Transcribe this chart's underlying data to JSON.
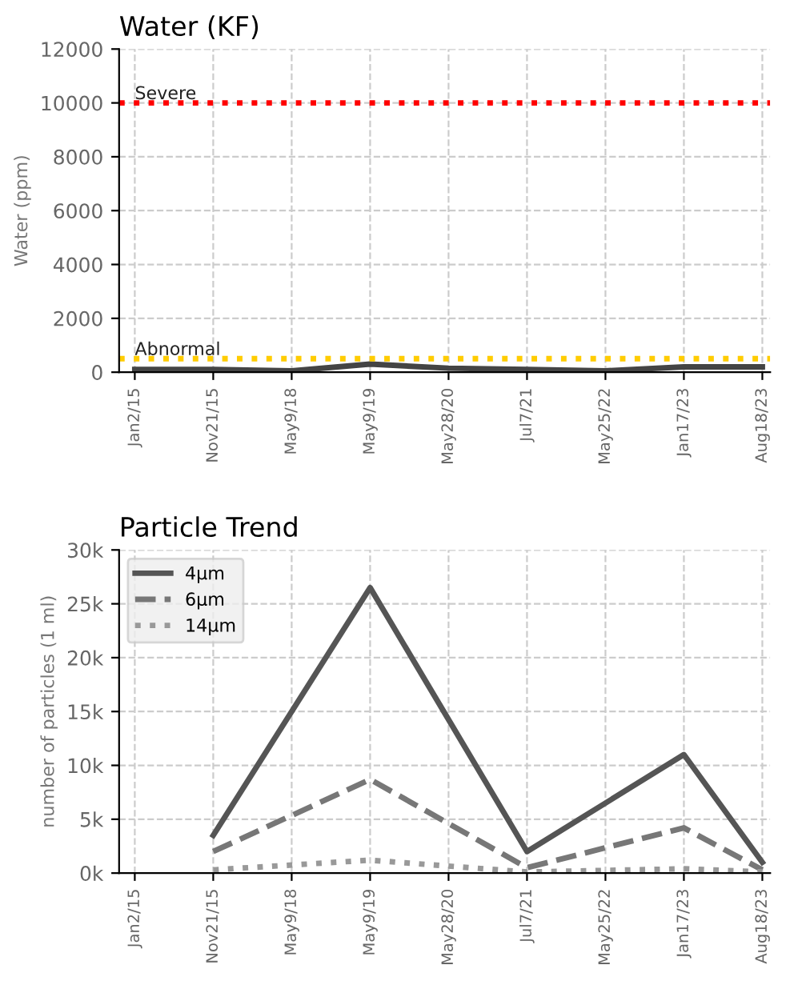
{
  "chart_data": [
    {
      "type": "line",
      "title": "Water (KF)",
      "ylabel": "Water (ppm)",
      "categories": [
        "Jan2/15",
        "Nov21/15",
        "May9/18",
        "May9/19",
        "May28/20",
        "Jul7/21",
        "May25/22",
        "Jan17/23",
        "Aug18/23"
      ],
      "series": [
        {
          "color": "#444444",
          "values": [
            100,
            100,
            50,
            300,
            150,
            100,
            50,
            200,
            200
          ]
        }
      ],
      "ylim": [
        0,
        12000
      ],
      "yticks": [
        0,
        2000,
        4000,
        6000,
        8000,
        10000,
        12000
      ],
      "grid": true,
      "line_style": "solid",
      "ref_lines": [
        {
          "axis": "y",
          "value": 10000,
          "label": "Severe",
          "color": "#ff0000",
          "line_style": "dotted"
        },
        {
          "axis": "y",
          "value": 500,
          "label": "Abnormal",
          "color": "#ffcc00",
          "line_style": "dotted"
        }
      ]
    },
    {
      "type": "line",
      "title": "Particle Trend",
      "ylabel": "number of particles (1 ml)",
      "categories": [
        "Jan2/15",
        "Nov21/15",
        "May9/18",
        "May9/19",
        "May28/20",
        "Jul7/21",
        "May25/22",
        "Jan17/23",
        "Aug18/23"
      ],
      "series": [
        {
          "name": "4µm",
          "color": "#555555",
          "line_style": "solid",
          "values": [
            null,
            3500,
            null,
            26500,
            null,
            2000,
            null,
            11000,
            1000
          ]
        },
        {
          "name": "6µm",
          "color": "#777777",
          "line_style": "dashed",
          "values": [
            null,
            2000,
            null,
            8700,
            null,
            500,
            null,
            4200,
            300
          ]
        },
        {
          "name": "14µm",
          "color": "#999999",
          "line_style": "dotted",
          "values": [
            null,
            300,
            null,
            1200,
            null,
            100,
            null,
            400,
            100
          ]
        }
      ],
      "ylim": [
        0,
        30000
      ],
      "yticks": [
        {
          "value": 0,
          "label": "0k"
        },
        {
          "value": 5000,
          "label": "5k"
        },
        {
          "value": 10000,
          "label": "10k"
        },
        {
          "value": 15000,
          "label": "15k"
        },
        {
          "value": 20000,
          "label": "20k"
        },
        {
          "value": 25000,
          "label": "25k"
        },
        {
          "value": 30000,
          "label": "30k"
        }
      ],
      "grid": true,
      "legend": "top left"
    }
  ]
}
